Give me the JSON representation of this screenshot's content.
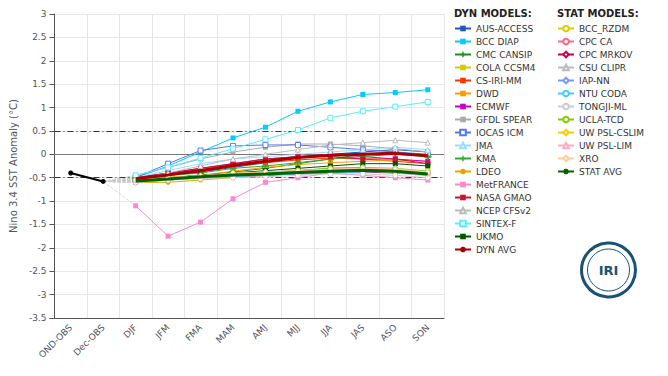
{
  "chart_data": {
    "type": "line",
    "ylabel": "Nino 3.4 SST Anomaly (°C)",
    "categories": [
      "OND-OBS",
      "Dec-OBS",
      "DJF",
      "JFM",
      "FMA",
      "MAM",
      "AMJ",
      "MJJ",
      "JJA",
      "JAS",
      "ASO",
      "SON"
    ],
    "ylim": [
      -3.5,
      3.0
    ],
    "yticks": [
      -3.5,
      -3,
      -2.5,
      -2,
      -1.5,
      -1,
      -0.5,
      0,
      0.5,
      1,
      1.5,
      2,
      2.5,
      3
    ],
    "grid": true,
    "hlines": [
      {
        "value": 0,
        "color": "#777777",
        "line_style": "solid"
      },
      {
        "value": 0.5,
        "color": "#333333",
        "line_style": "dashdot"
      },
      {
        "value": -0.5,
        "color": "#333333",
        "line_style": "dashdot"
      }
    ],
    "fan": {
      "color": "#cccccc",
      "line_style": "dashed"
    },
    "annotations": [
      {
        "text": "IRI",
        "color": "#1a5276"
      }
    ],
    "series": [
      {
        "color": "#000000",
        "marker": "circle",
        "line_style": "observed",
        "values": [
          -0.4,
          -0.58,
          null,
          null,
          null,
          null,
          null,
          null,
          null,
          null,
          null,
          null
        ]
      },
      {
        "name": "AUS-ACCESS",
        "group": "DYN MODELS:",
        "color": "#2255bb",
        "marker": "square",
        "values": [
          null,
          null,
          -0.55,
          -0.45,
          -0.38,
          -0.28,
          -0.18,
          -0.08,
          0.0,
          0.05,
          0.1,
          0.05
        ]
      },
      {
        "name": "BCC DIAP",
        "group": "DYN MODELS:",
        "color": "#00ccff",
        "marker": "square",
        "values": [
          null,
          null,
          -0.5,
          -0.25,
          0.05,
          0.35,
          0.58,
          0.92,
          1.12,
          1.28,
          1.32,
          1.38
        ]
      },
      {
        "name": "CMC CANSIP",
        "group": "DYN MODELS:",
        "color": "#228B22",
        "marker": "plus",
        "values": [
          null,
          null,
          -0.55,
          -0.5,
          -0.45,
          -0.38,
          -0.3,
          -0.2,
          -0.1,
          0.0,
          0.05,
          -0.05
        ]
      },
      {
        "name": "COLA CCSM4",
        "group": "DYN MODELS:",
        "color": "#cccc00",
        "marker": "square",
        "values": [
          null,
          null,
          -0.6,
          -0.55,
          -0.5,
          -0.45,
          -0.4,
          -0.35,
          -0.3,
          -0.3,
          -0.35,
          -0.4
        ]
      },
      {
        "name": "CS-IRI-MM",
        "group": "DYN MODELS:",
        "color": "#ff3300",
        "marker": "square",
        "values": [
          null,
          null,
          -0.5,
          -0.42,
          -0.32,
          -0.25,
          -0.18,
          -0.12,
          -0.08,
          -0.1,
          -0.15,
          -0.2
        ]
      },
      {
        "name": "DWD",
        "group": "DYN MODELS:",
        "color": "#ff9900",
        "marker": "square",
        "values": [
          null,
          null,
          -0.55,
          -0.5,
          -0.45,
          -0.36,
          -0.28,
          -0.22,
          -0.18,
          -0.15,
          -0.12,
          -0.15
        ]
      },
      {
        "name": "ECMWF",
        "group": "DYN MODELS:",
        "color": "#cc00cc",
        "marker": "square",
        "values": [
          null,
          null,
          -0.5,
          -0.4,
          -0.3,
          -0.2,
          -0.1,
          -0.05,
          0.0,
          -0.05,
          -0.1,
          -0.15
        ]
      },
      {
        "name": "GFDL SPEAR",
        "group": "DYN MODELS:",
        "color": "#aaaaaa",
        "marker": "square",
        "values": [
          null,
          null,
          -0.45,
          -0.28,
          -0.1,
          0.05,
          0.15,
          0.22,
          0.22,
          0.18,
          0.12,
          0.05
        ]
      },
      {
        "name": "IOCAS ICM",
        "group": "DYN MODELS:",
        "color": "#5577ee",
        "marker": "open square",
        "values": [
          null,
          null,
          -0.5,
          -0.2,
          0.08,
          0.18,
          0.2,
          0.2,
          0.15,
          0.1,
          0.05,
          0.0
        ]
      },
      {
        "name": "JMA",
        "group": "DYN MODELS:",
        "color": "#99ddff",
        "marker": "open triangle",
        "values": [
          null,
          null,
          -0.5,
          -0.35,
          -0.2,
          -0.1,
          -0.05,
          0.0,
          0.05,
          0.1,
          0.15,
          0.1
        ]
      },
      {
        "name": "KMA",
        "group": "DYN MODELS:",
        "color": "#33aa33",
        "marker": "plus",
        "values": [
          null,
          null,
          -0.5,
          -0.45,
          -0.4,
          -0.3,
          -0.25,
          -0.18,
          -0.1,
          -0.05,
          0.0,
          -0.05
        ]
      },
      {
        "name": "LDEO",
        "group": "DYN MODELS:",
        "color": "#ddaa00",
        "marker": "circle",
        "values": [
          null,
          null,
          -0.6,
          -0.6,
          -0.55,
          -0.5,
          -0.45,
          -0.4,
          -0.35,
          -0.35,
          -0.35,
          -0.4
        ]
      },
      {
        "name": "MetFRANCE",
        "group": "DYN MODELS:",
        "color": "#ff88cc",
        "marker": "square",
        "values": [
          null,
          null,
          -1.1,
          -1.75,
          -1.45,
          -0.95,
          -0.6,
          -0.5,
          -0.4,
          -0.45,
          -0.5,
          -0.55
        ]
      },
      {
        "name": "NASA GMAO",
        "group": "DYN MODELS:",
        "color": "#cc1133",
        "marker": "square",
        "values": [
          null,
          null,
          -0.5,
          -0.4,
          -0.3,
          -0.2,
          -0.1,
          -0.05,
          -0.05,
          -0.1,
          -0.1,
          -0.2
        ]
      },
      {
        "name": "NCEP CFSv2",
        "group": "DYN MODELS:",
        "color": "#bbbbbb",
        "marker": "open triangle",
        "values": [
          null,
          null,
          -0.55,
          -0.4,
          -0.25,
          -0.1,
          0.0,
          0.1,
          0.2,
          0.25,
          0.3,
          0.25
        ]
      },
      {
        "name": "SINTEX-F",
        "group": "DYN MODELS:",
        "color": "#55eeff",
        "marker": "open square",
        "values": [
          null,
          null,
          -0.45,
          -0.28,
          -0.08,
          0.12,
          0.32,
          0.52,
          0.78,
          0.92,
          1.02,
          1.12
        ]
      },
      {
        "name": "UKMO",
        "group": "DYN MODELS:",
        "color": "#005500",
        "marker": "square",
        "values": [
          null,
          null,
          -0.55,
          -0.5,
          -0.45,
          -0.4,
          -0.35,
          -0.3,
          -0.25,
          -0.2,
          -0.2,
          -0.25
        ]
      },
      {
        "name": "DYN AVG",
        "group": "DYN MODELS:",
        "color": "#aa0000",
        "line_style": "thick",
        "values": [
          null,
          null,
          -0.52,
          -0.44,
          -0.35,
          -0.24,
          -0.15,
          -0.07,
          -0.02,
          0.0,
          0.02,
          -0.03
        ]
      },
      {
        "name": "BCC_RZDM",
        "group": "STAT MODELS:",
        "color": "#ddcc00",
        "marker": "open circle",
        "values": [
          null,
          null,
          -0.55,
          -0.5,
          -0.46,
          -0.41,
          -0.38,
          -0.35,
          -0.31,
          -0.3,
          -0.35,
          -0.4
        ]
      },
      {
        "name": "CPC CA",
        "group": "STAT MODELS:",
        "color": "#ff6688",
        "marker": "open circle",
        "values": [
          null,
          null,
          -0.58,
          -0.55,
          -0.5,
          -0.48,
          -0.45,
          -0.4,
          -0.38,
          -0.35,
          -0.36,
          -0.42
        ]
      },
      {
        "name": "CPC MRKOV",
        "group": "STAT MODELS:",
        "color": "#cc0055",
        "marker": "open diamond",
        "values": [
          null,
          null,
          -0.58,
          -0.55,
          -0.5,
          -0.48,
          -0.45,
          -0.42,
          -0.4,
          -0.38,
          -0.4,
          -0.43
        ]
      },
      {
        "name": "CSU CLIPR",
        "group": "STAT MODELS:",
        "color": "#bbbbbb",
        "marker": "open triangle",
        "values": [
          null,
          null,
          -0.55,
          -0.5,
          -0.46,
          -0.42,
          -0.4,
          -0.38,
          -0.35,
          -0.35,
          -0.4,
          -0.46
        ]
      },
      {
        "name": "IAP-NN",
        "group": "STAT MODELS:",
        "color": "#7799ff",
        "marker": "open diamond",
        "values": [
          null,
          null,
          -0.55,
          -0.5,
          -0.46,
          -0.4,
          -0.38,
          -0.35,
          -0.3,
          -0.28,
          -0.35,
          -0.42
        ]
      },
      {
        "name": "NTU CODA",
        "group": "STAT MODELS:",
        "color": "#44ccff",
        "marker": "open circle",
        "values": [
          null,
          null,
          -0.6,
          -0.55,
          -0.5,
          -0.48,
          -0.45,
          -0.42,
          -0.4,
          -0.38,
          -0.36,
          -0.42
        ]
      },
      {
        "name": "TONGJI-ML",
        "group": "STAT MODELS:",
        "color": "#cccccc",
        "marker": "open circle",
        "values": [
          null,
          null,
          -0.6,
          -0.55,
          -0.52,
          -0.5,
          -0.48,
          -0.45,
          -0.42,
          -0.42,
          -0.45,
          -0.5
        ]
      },
      {
        "name": "UCLA-TCD",
        "group": "STAT MODELS:",
        "color": "#88cc00",
        "marker": "open circle",
        "values": [
          null,
          null,
          -0.55,
          -0.5,
          -0.46,
          -0.4,
          -0.38,
          -0.35,
          -0.3,
          -0.28,
          -0.3,
          -0.36
        ]
      },
      {
        "name": "UW PSL-CSLIM",
        "group": "STAT MODELS:",
        "color": "#ffcc00",
        "marker": "open diamond",
        "values": [
          null,
          null,
          -0.55,
          -0.5,
          -0.46,
          -0.42,
          -0.4,
          -0.38,
          -0.35,
          -0.32,
          -0.35,
          -0.42
        ]
      },
      {
        "name": "UW PSL-LIM",
        "group": "STAT MODELS:",
        "color": "#ffaacc",
        "marker": "open triangle",
        "values": [
          null,
          null,
          -0.55,
          -0.5,
          -0.46,
          -0.42,
          -0.4,
          -0.36,
          -0.32,
          -0.3,
          -0.3,
          -0.38
        ]
      },
      {
        "name": "XRO",
        "group": "STAT MODELS:",
        "color": "#ffcc99",
        "marker": "open diamond",
        "values": [
          null,
          null,
          -0.55,
          -0.5,
          -0.46,
          -0.4,
          -0.38,
          -0.35,
          -0.32,
          -0.3,
          -0.32,
          -0.38
        ]
      },
      {
        "name": "STAT AVG",
        "group": "STAT MODELS:",
        "color": "#006400",
        "line_style": "thick",
        "values": [
          null,
          null,
          -0.57,
          -0.53,
          -0.48,
          -0.44,
          -0.42,
          -0.39,
          -0.36,
          -0.34,
          -0.36,
          -0.42
        ]
      }
    ]
  }
}
